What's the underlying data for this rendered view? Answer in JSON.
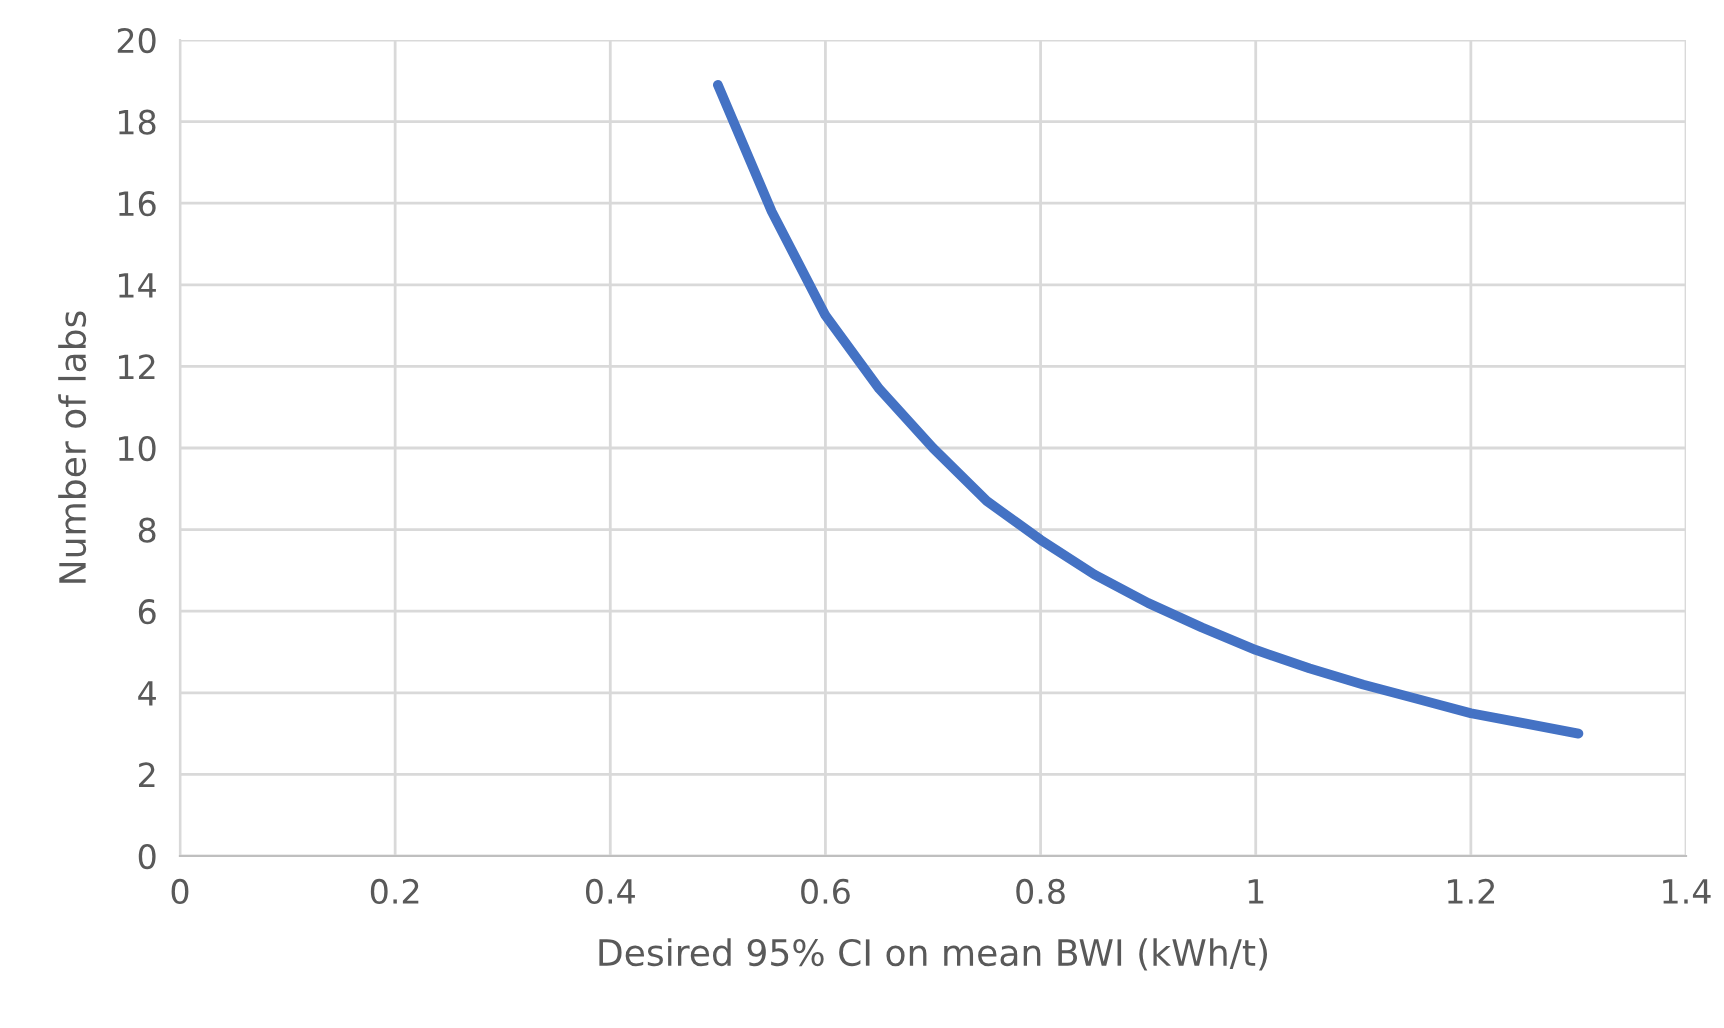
{
  "chart_data": {
    "type": "line",
    "xlabel": "Desired 95% CI on mean BWI (kWh/t)",
    "ylabel": "Number of labs",
    "x": [
      0.5,
      0.55,
      0.6,
      0.65,
      0.7,
      0.75,
      0.8,
      0.85,
      0.9,
      0.95,
      1.0,
      1.05,
      1.1,
      1.15,
      1.2,
      1.25,
      1.3
    ],
    "series": [
      {
        "color": "#4472c4",
        "values": [
          18.9,
          15.8,
          13.25,
          11.45,
          10.0,
          8.7,
          7.75,
          6.9,
          6.2,
          5.6,
          5.05,
          4.6,
          4.2,
          3.85,
          3.5,
          3.25,
          3.0
        ]
      }
    ],
    "xlim": [
      0,
      1.4
    ],
    "xticks": [
      0,
      0.2,
      0.4,
      0.6,
      0.8,
      1,
      1.2,
      1.4
    ],
    "ylim": [
      0,
      20
    ],
    "yticks": [
      0,
      2,
      4,
      6,
      8,
      10,
      12,
      14,
      16,
      18,
      20
    ],
    "grid": true,
    "legend": false,
    "marker": "none",
    "line_style": "solid"
  }
}
